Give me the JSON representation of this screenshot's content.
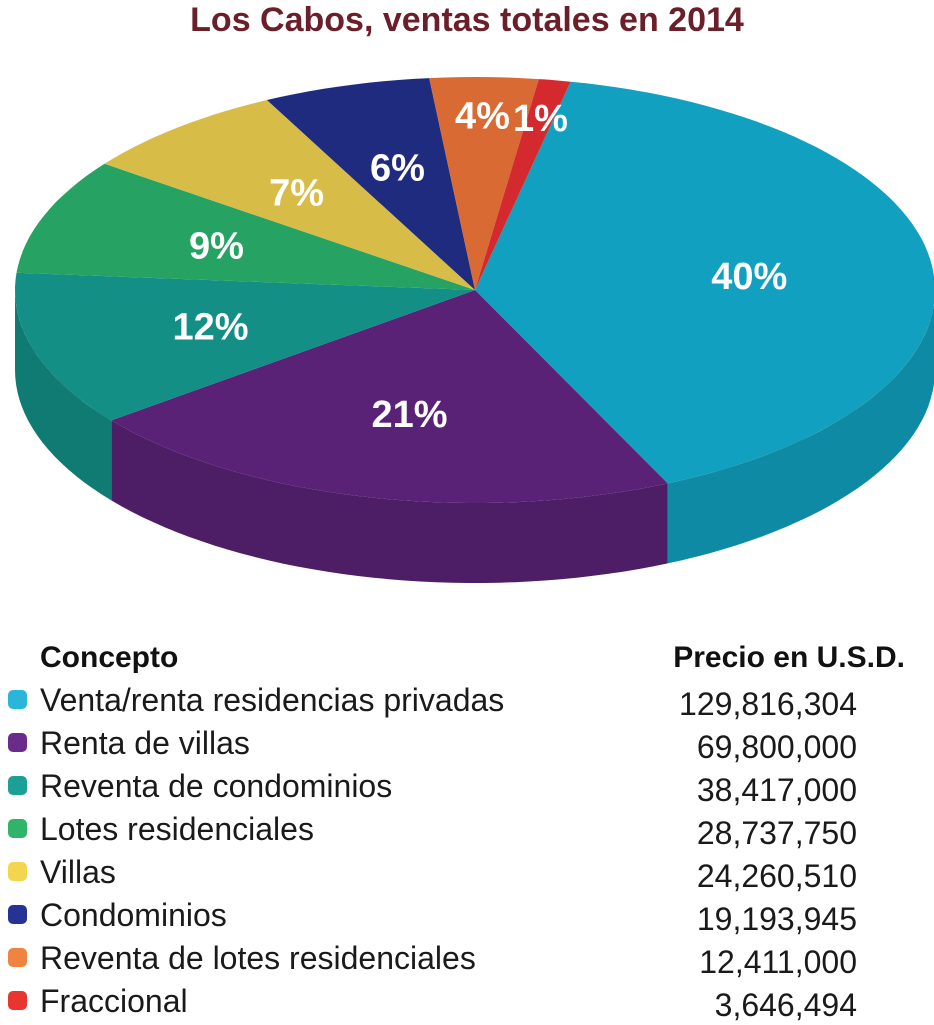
{
  "title": "Los Cabos, ventas totales en 2014",
  "table": {
    "header_concept": "Concepto",
    "header_price": "Precio en U.S.D."
  },
  "chart_data": {
    "type": "pie",
    "title": "Los Cabos, ventas totales en 2014",
    "xlabel": "",
    "ylabel": "",
    "style": "3d",
    "legend_position": "bottom",
    "slices": [
      {
        "name": "Venta/renta residencias privadas",
        "value": 129816304,
        "value_label": "129,816,304",
        "percent_label": "40%",
        "color": "#11a0c0",
        "legend_color": "#29b6d8"
      },
      {
        "name": "Renta de villas",
        "value": 69800000,
        "value_label": "69,800,000",
        "percent_label": "21%",
        "color": "#5a2277",
        "legend_color": "#6b2b8a"
      },
      {
        "name": "Reventa de condominios",
        "value": 38417000,
        "value_label": "38,417,000",
        "percent_label": "12%",
        "color": "#138f86",
        "legend_color": "#1aa095"
      },
      {
        "name": "Lotes residenciales",
        "value": 28737750,
        "value_label": "28,737,750",
        "percent_label": "9%",
        "color": "#26a362",
        "legend_color": "#2fb46a"
      },
      {
        "name": "Villas",
        "value": 24260510,
        "value_label": "24,260,510",
        "percent_label": "7%",
        "color": "#d7bd47",
        "legend_color": "#f4d64e"
      },
      {
        "name": "Condominios",
        "value": 19193945,
        "value_label": "19,193,945",
        "percent_label": "6%",
        "color": "#1f2b7e",
        "legend_color": "#253394"
      },
      {
        "name": "Reventa de lotes residenciales",
        "value": 12411000,
        "value_label": "12,411,000",
        "percent_label": "4%",
        "color": "#d96a34",
        "legend_color": "#ef8440"
      },
      {
        "name": "Fraccional",
        "value": 3646494,
        "value_label": "3,646,494",
        "percent_label": "1%",
        "color": "#d42a2f",
        "legend_color": "#e8352f"
      }
    ]
  }
}
